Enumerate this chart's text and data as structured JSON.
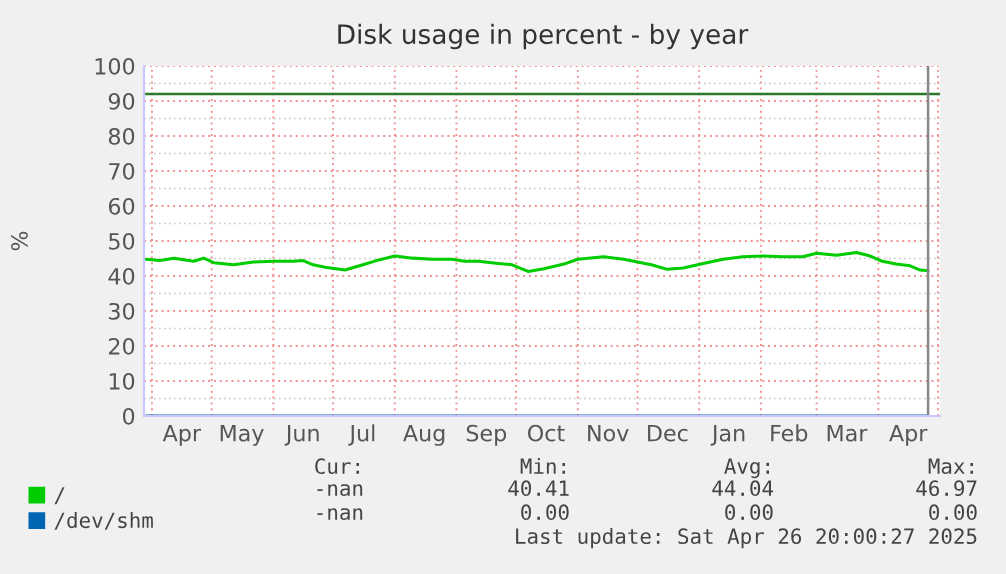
{
  "chart_data": {
    "type": "line",
    "title": "Disk usage in percent - by year",
    "ylabel": "%",
    "xlim": [
      "2024-03-28",
      "2025-05-02"
    ],
    "ylim": [
      0,
      100
    ],
    "yticks": [
      0,
      10,
      20,
      30,
      40,
      50,
      60,
      70,
      80,
      90,
      100
    ],
    "xticks": [
      {
        "value": "2024-04-01",
        "label": null
      },
      {
        "value": "2024-04-16",
        "label": "Apr"
      },
      {
        "value": "2024-05-01",
        "label": null
      },
      {
        "value": "2024-05-16",
        "label": "May"
      },
      {
        "value": "2024-06-01",
        "label": null
      },
      {
        "value": "2024-06-16",
        "label": "Jun"
      },
      {
        "value": "2024-07-01",
        "label": null
      },
      {
        "value": "2024-07-16",
        "label": "Jul"
      },
      {
        "value": "2024-08-01",
        "label": null
      },
      {
        "value": "2024-08-16",
        "label": "Aug"
      },
      {
        "value": "2024-09-01",
        "label": null
      },
      {
        "value": "2024-09-16",
        "label": "Sep"
      },
      {
        "value": "2024-10-01",
        "label": null
      },
      {
        "value": "2024-10-16",
        "label": "Oct"
      },
      {
        "value": "2024-11-01",
        "label": null
      },
      {
        "value": "2024-11-16",
        "label": "Nov"
      },
      {
        "value": "2024-12-01",
        "label": null
      },
      {
        "value": "2024-12-16",
        "label": "Dec"
      },
      {
        "value": "2025-01-01",
        "label": null
      },
      {
        "value": "2025-01-16",
        "label": "Jan"
      },
      {
        "value": "2025-02-01",
        "label": null
      },
      {
        "value": "2025-02-15",
        "label": "Feb"
      },
      {
        "value": "2025-03-01",
        "label": null
      },
      {
        "value": "2025-03-16",
        "label": "Mar"
      },
      {
        "value": "2025-04-01",
        "label": null
      },
      {
        "value": "2025-04-16",
        "label": "Apr"
      },
      {
        "value": "2025-05-01",
        "label": null
      }
    ],
    "grid": true,
    "legend": "bottom",
    "marker": "none",
    "line_style": "solid",
    "series": [
      {
        "name": "/",
        "color": "#00cc00",
        "x": [
          "2024-03-29",
          "2024-04-05",
          "2024-04-12",
          "2024-04-22",
          "2024-04-27",
          "2024-05-02",
          "2024-05-12",
          "2024-05-22",
          "2024-06-01",
          "2024-06-11",
          "2024-06-16",
          "2024-06-21",
          "2024-06-27",
          "2024-07-07",
          "2024-07-16",
          "2024-07-24",
          "2024-08-01",
          "2024-08-10",
          "2024-08-20",
          "2024-08-30",
          "2024-09-05",
          "2024-09-12",
          "2024-09-22",
          "2024-09-29",
          "2024-10-07",
          "2024-10-15",
          "2024-10-25",
          "2024-11-01",
          "2024-11-14",
          "2024-11-24",
          "2024-12-01",
          "2024-12-08",
          "2024-12-16",
          "2024-12-24",
          "2025-01-03",
          "2025-01-13",
          "2025-01-23",
          "2025-02-02",
          "2025-02-12",
          "2025-02-22",
          "2025-03-01",
          "2025-03-11",
          "2025-03-21",
          "2025-03-28",
          "2025-04-03",
          "2025-04-10",
          "2025-04-17",
          "2025-04-22",
          "2025-04-26"
        ],
        "values": [
          44.8,
          44.4,
          45.1,
          44.2,
          45.1,
          43.8,
          43.2,
          44.0,
          44.2,
          44.2,
          44.4,
          43.2,
          42.5,
          41.7,
          43.2,
          44.6,
          45.7,
          45.1,
          44.8,
          44.8,
          44.2,
          44.2,
          43.6,
          43.2,
          41.3,
          42.1,
          43.4,
          44.8,
          45.5,
          44.8,
          44.0,
          43.2,
          41.9,
          42.3,
          43.6,
          44.8,
          45.5,
          45.7,
          45.5,
          45.5,
          46.5,
          45.9,
          46.7,
          45.7,
          44.2,
          43.4,
          42.9,
          41.7,
          41.5
        ]
      },
      {
        "name": "/dev/shm",
        "color": "#0066b3",
        "x": [
          "2024-03-29",
          "2025-04-26"
        ],
        "values": [
          0,
          0
        ]
      }
    ],
    "ref_lines": [
      {
        "axis": "y",
        "value": 92,
        "color": "#2a7a2a"
      },
      {
        "axis": "x",
        "value": "2025-04-26",
        "color": "#888888"
      }
    ],
    "annotations": [
      "Cur:",
      "Min:",
      "Avg:",
      "Max:",
      "-nan",
      "40.41",
      "44.04",
      "46.97",
      "-nan",
      "0.00",
      "0.00",
      "0.00",
      "Last update: Sat Apr 26 20:00:27 2025"
    ]
  }
}
